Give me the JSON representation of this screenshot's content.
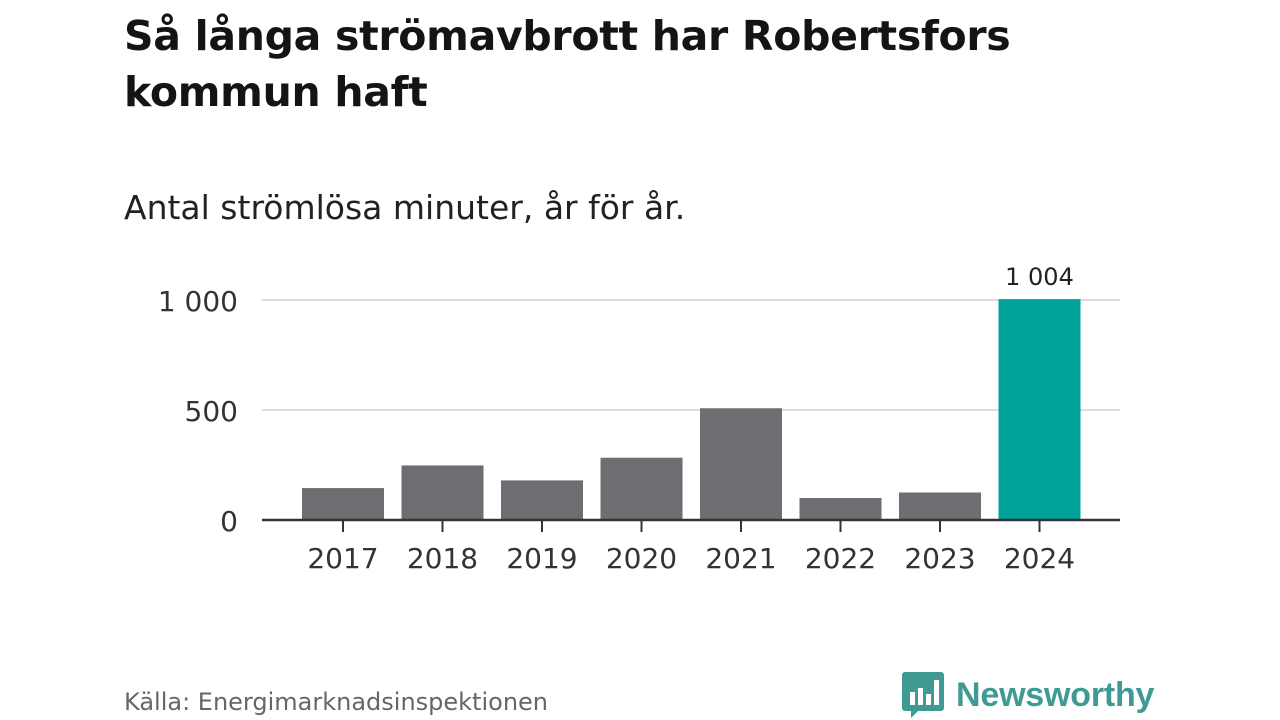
{
  "header": {
    "title": "Så långa strömavbrott har Robertsfors kommun haft",
    "subtitle": "Antal strömlösa minuter, år för år."
  },
  "footer": {
    "source": "Källa: Energimarknadsinspektionen",
    "brand": "Newsworthy"
  },
  "colors": {
    "bar_default": "#6e6d72",
    "bar_highlight": "#00a399",
    "brand": "#3f9a93",
    "grid": "#dcdcdc",
    "axis": "#333333"
  },
  "chart_data": {
    "type": "bar",
    "title": "Så långa strömavbrott har Robertsfors kommun haft",
    "subtitle": "Antal strömlösa minuter, år för år.",
    "xlabel": "",
    "ylabel": "",
    "categories": [
      "2017",
      "2018",
      "2019",
      "2020",
      "2021",
      "2022",
      "2023",
      "2024"
    ],
    "values": [
      145,
      248,
      180,
      283,
      508,
      100,
      125,
      1004
    ],
    "highlight_index": 7,
    "data_labels": [
      {
        "index": 7,
        "text": "1 004"
      }
    ],
    "yticks": [
      {
        "value": 0,
        "label": "0"
      },
      {
        "value": 500,
        "label": "500"
      },
      {
        "value": 1000,
        "label": "1 000"
      }
    ],
    "ylim": [
      0,
      1000
    ],
    "grid": true
  }
}
